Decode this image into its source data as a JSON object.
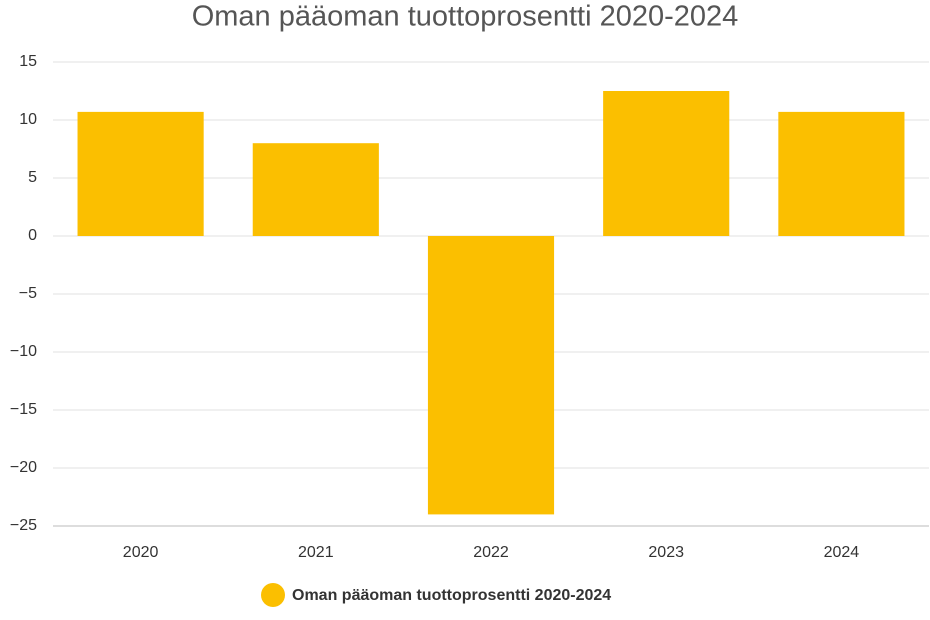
{
  "chart_data": {
    "type": "bar",
    "title": "Oman pääoman tuottoprosentti 2020-2024",
    "categories": [
      "2020",
      "2021",
      "2022",
      "2023",
      "2024"
    ],
    "series": [
      {
        "name": "Oman pääoman tuottoprosentti 2020-2024",
        "color": "#fbbf00",
        "values": [
          10.7,
          8.0,
          -24.0,
          12.5,
          10.7
        ]
      }
    ],
    "ylim": [
      -25,
      15
    ],
    "yticks": [
      {
        "value": -25,
        "label": "−25"
      },
      {
        "value": -20,
        "label": "−20"
      },
      {
        "value": -15,
        "label": "−15"
      },
      {
        "value": -10,
        "label": "−10"
      },
      {
        "value": -5,
        "label": "−5"
      },
      0,
      5,
      10,
      15
    ],
    "grid": true,
    "legend": "bottom"
  }
}
